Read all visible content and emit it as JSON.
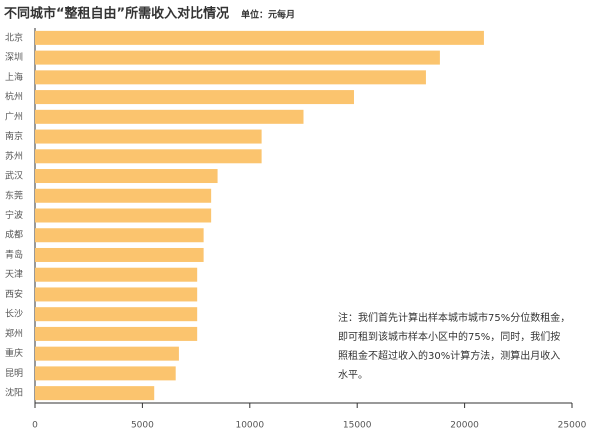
{
  "chart_data": {
    "type": "hbar",
    "title": "不同城市“整租自由”所需收入对比情况",
    "unit": "单位：元每月",
    "categories": [
      "北京",
      "深圳",
      "上海",
      "杭州",
      "广州",
      "南京",
      "苏州",
      "武汉",
      "东莞",
      "宁波",
      "成都",
      "青岛",
      "天津",
      "西安",
      "长沙",
      "郑州",
      "重庆",
      "昆明",
      "沈阳"
    ],
    "values": [
      20900,
      18850,
      18200,
      14850,
      12500,
      10550,
      10550,
      8500,
      8200,
      8200,
      7850,
      7850,
      7550,
      7550,
      7550,
      7550,
      6700,
      6550,
      5550
    ],
    "color": "#fbc46e",
    "xlim": [
      0,
      25000
    ],
    "xticks": [
      0,
      5000,
      10000,
      15000,
      20000,
      25000
    ],
    "grid": false,
    "note_lines": [
      "注：我们首先计算出样本城市城市75%分位数租金，",
      "即可租到该城市样本小区中的75%，同时，我们按",
      "照租金不超过收入的30%计算方法，测算出月收入",
      "水平。"
    ]
  }
}
